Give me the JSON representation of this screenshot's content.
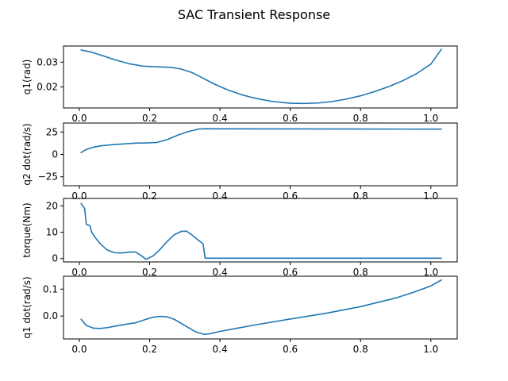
{
  "figure": {
    "title": "SAC Transient Response",
    "line_color": "#1f77b4"
  },
  "chart_data": [
    {
      "type": "line",
      "ylabel": "q1(rad)",
      "xlim": [
        -0.045,
        1.075
      ],
      "ylim": [
        0.0115,
        0.0365
      ],
      "xticks": [
        0.0,
        0.2,
        0.4,
        0.6,
        0.8,
        1.0
      ],
      "xtick_labels": [
        "0.0",
        "0.2",
        "0.4",
        "0.6",
        "0.8",
        "1.0"
      ],
      "yticks": [
        0.02,
        0.03
      ],
      "ytick_labels": [
        "0.02",
        "0.03"
      ],
      "series": [
        {
          "x": [
            0.005,
            0.03,
            0.06,
            0.1,
            0.14,
            0.18,
            0.22,
            0.26,
            0.29,
            0.32,
            0.35,
            0.38,
            0.42,
            0.46,
            0.5,
            0.55,
            0.6,
            0.64,
            0.68,
            0.72,
            0.76,
            0.8,
            0.84,
            0.88,
            0.92,
            0.96,
            1.0,
            1.03
          ],
          "y": [
            0.0349,
            0.0342,
            0.0329,
            0.031,
            0.0294,
            0.0284,
            0.0281,
            0.0279,
            0.0272,
            0.0258,
            0.0237,
            0.0214,
            0.0189,
            0.0169,
            0.0154,
            0.0141,
            0.0134,
            0.0133,
            0.0135,
            0.0141,
            0.0151,
            0.0164,
            0.0181,
            0.0201,
            0.0225,
            0.0254,
            0.0292,
            0.0352
          ]
        }
      ]
    },
    {
      "type": "line",
      "ylabel": "q2 dot(rad/s)",
      "xlim": [
        -0.045,
        1.075
      ],
      "ylim": [
        -35,
        35
      ],
      "xticks": [
        0.0,
        0.2,
        0.4,
        0.6,
        0.8,
        1.0
      ],
      "xtick_labels": [
        "0.0",
        "0.2",
        "0.4",
        "0.6",
        "0.8",
        "1.0"
      ],
      "yticks": [
        -25,
        0,
        25
      ],
      "ytick_labels": [
        "−25",
        "0",
        "25"
      ],
      "series": [
        {
          "x": [
            0.005,
            0.02,
            0.04,
            0.06,
            0.08,
            0.1,
            0.13,
            0.16,
            0.19,
            0.22,
            0.25,
            0.28,
            0.31,
            0.34,
            0.355,
            0.4,
            0.6,
            0.8,
            1.03
          ],
          "y": [
            2,
            5.5,
            8,
            9.5,
            10.3,
            11,
            11.8,
            12.6,
            12.8,
            13.3,
            16.5,
            21.5,
            25.5,
            28.3,
            28.6,
            28.5,
            28.4,
            28.3,
            28.2
          ]
        }
      ]
    },
    {
      "type": "line",
      "ylabel": "torque(Nm)",
      "xlim": [
        -0.045,
        1.075
      ],
      "ylim": [
        -1.3,
        22.8
      ],
      "xticks": [
        0.0,
        0.2,
        0.4,
        0.6,
        0.8,
        1.0
      ],
      "xtick_labels": [
        "0.0",
        "0.2",
        "0.4",
        "0.6",
        "0.8",
        "1.0"
      ],
      "yticks": [
        0,
        10,
        20
      ],
      "ytick_labels": [
        "0",
        "10",
        "20"
      ],
      "series": [
        {
          "x": [
            0.005,
            0.015,
            0.02,
            0.03,
            0.035,
            0.045,
            0.06,
            0.08,
            0.1,
            0.12,
            0.14,
            0.16,
            0.175,
            0.19,
            0.21,
            0.23,
            0.25,
            0.27,
            0.29,
            0.305,
            0.32,
            0.34,
            0.352,
            0.358,
            0.37,
            0.5,
            0.8,
            1.03
          ],
          "y": [
            20.9,
            19,
            13,
            12.5,
            10,
            8,
            5.5,
            3.2,
            2.2,
            2.1,
            2.4,
            2.5,
            1.2,
            -0.3,
            1,
            3.5,
            6.5,
            9,
            10.3,
            10.4,
            9,
            6.8,
            5.6,
            0.1,
            0.1,
            0.1,
            0.1,
            0.1
          ]
        }
      ]
    },
    {
      "type": "line",
      "ylabel": "q1 dot(rad/s)",
      "xlim": [
        -0.045,
        1.075
      ],
      "ylim": [
        -0.085,
        0.148
      ],
      "xticks": [
        0.0,
        0.2,
        0.4,
        0.6,
        0.8,
        1.0
      ],
      "xtick_labels": [
        "0.0",
        "0.2",
        "0.4",
        "0.6",
        "0.8",
        "1.0"
      ],
      "yticks": [
        0.0,
        0.1
      ],
      "ytick_labels": [
        "0.0",
        "0.1"
      ],
      "series": [
        {
          "x": [
            0.005,
            0.02,
            0.04,
            0.06,
            0.08,
            0.1,
            0.13,
            0.16,
            0.19,
            0.21,
            0.23,
            0.25,
            0.27,
            0.3,
            0.33,
            0.355,
            0.37,
            0.4,
            0.45,
            0.5,
            0.55,
            0.6,
            0.7,
            0.8,
            0.9,
            0.95,
            1.0,
            1.03
          ],
          "y": [
            -0.012,
            -0.035,
            -0.045,
            -0.046,
            -0.043,
            -0.038,
            -0.031,
            -0.025,
            -0.012,
            -0.004,
            -0.001,
            -0.003,
            -0.012,
            -0.035,
            -0.058,
            -0.068,
            -0.066,
            -0.057,
            -0.045,
            -0.033,
            -0.022,
            -0.011,
            0.01,
            0.035,
            0.067,
            0.088,
            0.112,
            0.134
          ]
        }
      ]
    }
  ]
}
